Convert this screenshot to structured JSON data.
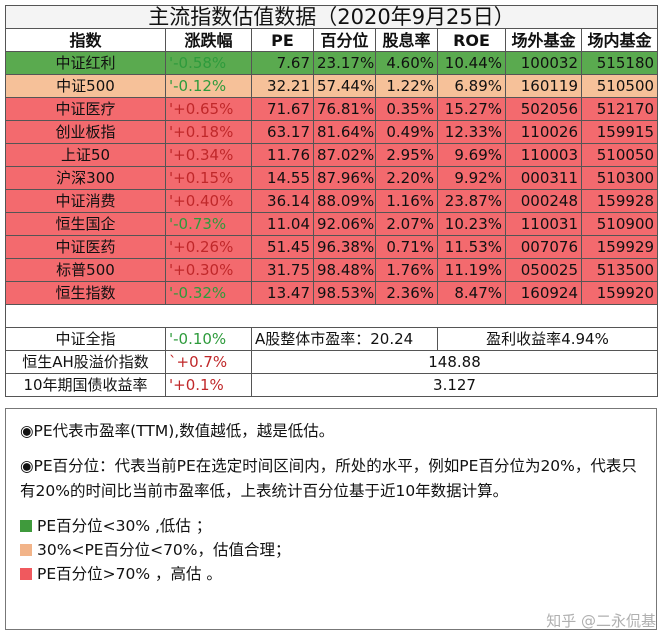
{
  "title": "主流指数估值数据（2020年9月25日）",
  "headers": [
    "指数",
    "涨跌幅",
    "PE",
    "百分位",
    "股息率",
    "ROE",
    "场外基金",
    "场内基金"
  ],
  "rows": [
    {
      "name": "中证红利",
      "change": "'-0.58%",
      "pe": "7.67",
      "pct": "23.17%",
      "div": "4.60%",
      "roe": "10.44%",
      "otc": "100032",
      "etf": "515180",
      "level": "green"
    },
    {
      "name": "中证500",
      "change": "'-0.12%",
      "pe": "32.21",
      "pct": "57.44%",
      "div": "1.22%",
      "roe": "6.89%",
      "otc": "160119",
      "etf": "510500",
      "level": "orange"
    },
    {
      "name": "中证医疗",
      "change": "'+0.65%",
      "pe": "71.67",
      "pct": "76.81%",
      "div": "0.35%",
      "roe": "15.27%",
      "otc": "502056",
      "etf": "512170",
      "level": "red"
    },
    {
      "name": "创业板指",
      "change": "'+0.18%",
      "pe": "63.17",
      "pct": "81.64%",
      "div": "0.49%",
      "roe": "12.33%",
      "otc": "110026",
      "etf": "159915",
      "level": "red"
    },
    {
      "name": "上证50",
      "change": "'+0.34%",
      "pe": "11.76",
      "pct": "87.02%",
      "div": "2.95%",
      "roe": "9.69%",
      "otc": "110003",
      "etf": "510050",
      "level": "red"
    },
    {
      "name": "沪深300",
      "change": "'+0.15%",
      "pe": "14.55",
      "pct": "87.96%",
      "div": "2.20%",
      "roe": "9.92%",
      "otc": "000311",
      "etf": "510300",
      "level": "red"
    },
    {
      "name": "中证消费",
      "change": "'+0.40%",
      "pe": "36.14",
      "pct": "88.09%",
      "div": "1.16%",
      "roe": "23.87%",
      "otc": "000248",
      "etf": "159928",
      "level": "red"
    },
    {
      "name": "恒生国企",
      "change": "'-0.73%",
      "pe": "11.04",
      "pct": "92.06%",
      "div": "2.07%",
      "roe": "10.23%",
      "otc": "110031",
      "etf": "510900",
      "level": "red"
    },
    {
      "name": "中证医药",
      "change": "'+0.26%",
      "pe": "51.45",
      "pct": "96.38%",
      "div": "0.71%",
      "roe": "11.53%",
      "otc": "007076",
      "etf": "159929",
      "level": "red"
    },
    {
      "name": "标普500",
      "change": "'+0.30%",
      "pe": "31.75",
      "pct": "98.48%",
      "div": "1.76%",
      "roe": "11.19%",
      "otc": "050025",
      "etf": "513500",
      "level": "red"
    },
    {
      "name": "恒生指数",
      "change": "'-0.32%",
      "pe": "13.47",
      "pct": "98.53%",
      "div": "2.36%",
      "roe": "8.47%",
      "otc": "160924",
      "etf": "159920",
      "level": "red"
    }
  ],
  "footer": {
    "all_a": {
      "name": "中证全指",
      "change": "'-0.10%",
      "pe_label": "A股整体市盈率：",
      "pe_value": "20.24",
      "yield_label": "盈利收益率",
      "yield_value": "4.94%"
    },
    "ah": {
      "name": "恒生AH股溢价指数",
      "change": "`+0.7%",
      "value": "148.88"
    },
    "bond": {
      "name": "10年期国债收益率",
      "change": "'+0.1%",
      "value": "3.127"
    }
  },
  "notes": {
    "note1": "◉PE代表市盈率(TTM),数值越低，越是低估。",
    "note2": "◉PE百分位：代表当前PE在选定时间区间内，所处的水平，例如PE百分位为20%，代表只有20%的时间比当前市盈率低，上表统计百分位基于近10年数据计算。",
    "legend": [
      {
        "text": "PE百分位<30% ,低估 ；",
        "color": "#3f9a3c"
      },
      {
        "text": "30%<PE百分位<70%，估值合理；",
        "color": "#f2b489"
      },
      {
        "text": "PE百分位>70% ，高估 。",
        "color": "#f0595e"
      }
    ]
  },
  "watermark": "知乎 @二永侃基"
}
